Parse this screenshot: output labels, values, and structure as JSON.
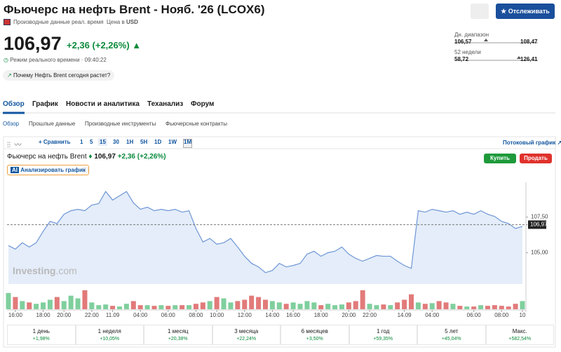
{
  "header": {
    "title": "Фьючерс на нефть Brent - Нояб. '26 (LCOX6)",
    "data_note": "Производные данные реал. время",
    "currency_label": "Цена в",
    "currency": "USD",
    "follow_button": "Отслеживать"
  },
  "quote": {
    "price": "106,97",
    "change": "+2,36",
    "change_pct": "(+2,26%)",
    "time_label": "Режим реального времени · 09:40:22"
  },
  "question": "Почему Нефть Brent сегодня растет?",
  "ranges": [
    {
      "label": "Дн. диапазон",
      "low": "106,57",
      "high": "108,47"
    },
    {
      "label": "52 недели",
      "low": "58,72",
      "high": "126,41"
    }
  ],
  "tabs": [
    "Обзор",
    "График",
    "Новости и аналитика",
    "Теханализ",
    "Форум"
  ],
  "subtabs": [
    "Обзор",
    "Прошлые данные",
    "Производные инструменты",
    "Фьючерсные контракты"
  ],
  "toolbar": {
    "compare": "Сравнить",
    "intervals": [
      "1",
      "5",
      "15",
      "30",
      "1H",
      "5H",
      "1D",
      "1W",
      "1M"
    ],
    "stream": "Потоковый график"
  },
  "chart_header": {
    "name": "Фьючерс на нефть Brent",
    "price": "106,97",
    "change": "+2,36",
    "change_pct": "(+2,26%)",
    "analyze": "Анализировать график",
    "buy": "Купить",
    "sell": "Продать",
    "watermark": "Investing",
    "watermark_suffix": ".com"
  },
  "chart_data": {
    "type": "line",
    "color": "#6f96d6",
    "area_color": "#e4edf9",
    "categories": [
      null,
      "16:00",
      null,
      null,
      null,
      "18:00",
      null,
      null,
      "20:00",
      null,
      null,
      null,
      "22:00",
      null,
      null,
      "11.09",
      null,
      null,
      null,
      "04:00",
      null,
      null,
      null,
      "06:00",
      null,
      null,
      null,
      "08:00",
      null,
      null,
      "10:00",
      null,
      null,
      null,
      "12:00",
      null,
      null,
      null,
      "14:00",
      null,
      null,
      "16:00",
      null,
      null,
      null,
      "18:00",
      null,
      null,
      null,
      "20:00",
      null,
      null,
      "22:00",
      null,
      null,
      null,
      null,
      "14.09",
      null,
      null,
      null,
      "04:00",
      null,
      null,
      null,
      null,
      null,
      "06:00",
      null,
      null,
      null,
      "08:00",
      null,
      null,
      "10"
    ],
    "values": [
      105.5,
      105.25,
      105.7,
      105.4,
      105.7,
      106.5,
      107.2,
      107.05,
      107.7,
      107.95,
      108.05,
      107.95,
      108.35,
      108.45,
      109.3,
      108.7,
      109.0,
      109.3,
      108.5,
      108.05,
      108.2,
      107.95,
      108.05,
      107.95,
      108.05,
      107.85,
      107.95,
      106.7,
      105.75,
      106.0,
      105.6,
      105.7,
      106.0,
      105.4,
      104.75,
      104.25,
      104.0,
      103.6,
      103.75,
      104.25,
      104.0,
      104.1,
      104.25,
      104.9,
      105.1,
      104.75,
      105.0,
      105.1,
      105.4,
      104.9,
      104.6,
      104.4,
      104.6,
      104.8,
      104.75,
      104.75,
      104.4,
      104.1,
      103.9,
      107.95,
      107.85,
      108.05,
      107.95,
      107.85,
      107.95,
      107.7,
      107.85,
      107.7,
      107.95,
      107.7,
      107.55,
      107.2,
      107.05,
      106.7,
      106.85
    ],
    "ylim": [
      102.8,
      109.7
    ],
    "yticks": [
      {
        "value": 107.5,
        "label": "107,50"
      },
      {
        "value": 105,
        "label": "105,00"
      }
    ],
    "last_value": {
      "value": 106.97,
      "label": "106,97"
    },
    "volume": [
      24,
      18,
      12,
      10,
      8,
      10,
      14,
      18,
      12,
      20,
      16,
      28,
      10,
      6,
      7,
      5,
      4,
      8,
      12,
      6,
      6,
      5,
      6,
      5,
      6,
      6,
      6,
      8,
      10,
      12,
      18,
      16,
      10,
      12,
      14,
      20,
      18,
      14,
      12,
      10,
      8,
      10,
      8,
      12,
      10,
      6,
      8,
      6,
      7,
      10,
      12,
      28,
      8,
      6,
      7,
      6,
      10,
      14,
      22,
      10,
      8,
      9,
      12,
      10,
      8,
      5,
      4,
      4,
      6,
      5,
      6,
      5,
      4,
      8,
      12
    ],
    "volume_lim": [
      0,
      30
    ],
    "up_color": "#7fcf9d",
    "down_color": "#e27a7a"
  },
  "periods": [
    {
      "label": "1 день",
      "change": "+1,98%"
    },
    {
      "label": "1 неделя",
      "change": "+10,05%"
    },
    {
      "label": "1 месяц",
      "change": "+20,38%"
    },
    {
      "label": "3 месяца",
      "change": "+22,24%"
    },
    {
      "label": "6 месяцев",
      "change": "+3,50%"
    },
    {
      "label": "1 год",
      "change": "+59,35%"
    },
    {
      "label": "5 лет",
      "change": "+45,04%"
    },
    {
      "label": "Макс.",
      "change": "+582,54%"
    }
  ]
}
